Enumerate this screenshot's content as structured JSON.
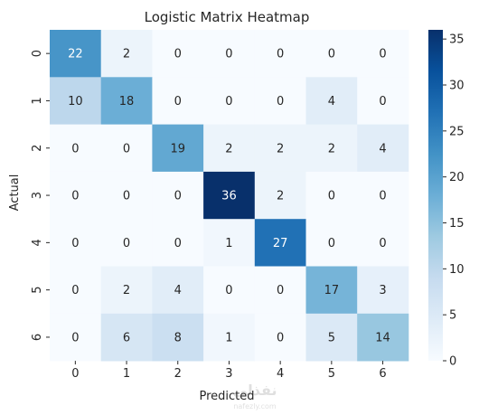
{
  "chart_data": {
    "type": "heatmap",
    "title": "Logistic Matrix Heatmap",
    "xlabel": "Predicted",
    "ylabel": "Actual",
    "x_categories": [
      "0",
      "1",
      "2",
      "3",
      "4",
      "5",
      "6"
    ],
    "y_categories": [
      "0",
      "1",
      "2",
      "3",
      "4",
      "5",
      "6"
    ],
    "matrix": [
      [
        22,
        2,
        0,
        0,
        0,
        0,
        0
      ],
      [
        10,
        18,
        0,
        0,
        0,
        4,
        0
      ],
      [
        0,
        0,
        19,
        2,
        2,
        2,
        4
      ],
      [
        0,
        0,
        0,
        36,
        2,
        0,
        0
      ],
      [
        0,
        0,
        0,
        1,
        27,
        0,
        0
      ],
      [
        0,
        2,
        4,
        0,
        0,
        17,
        3
      ],
      [
        0,
        6,
        8,
        1,
        0,
        5,
        14
      ]
    ],
    "colormap": "Blues",
    "vmin": 0,
    "vmax": 36,
    "colorbar_ticks": [
      0,
      5,
      10,
      15,
      20,
      25,
      30,
      35
    ],
    "annotated": true
  },
  "colors": {
    "low": "#f7fbff",
    "high": "#08306b",
    "text_dark": "#262626",
    "text_light": "#ffffff"
  },
  "watermark": {
    "text_primary": "نفذلي",
    "text_secondary": "nafezly.com"
  }
}
